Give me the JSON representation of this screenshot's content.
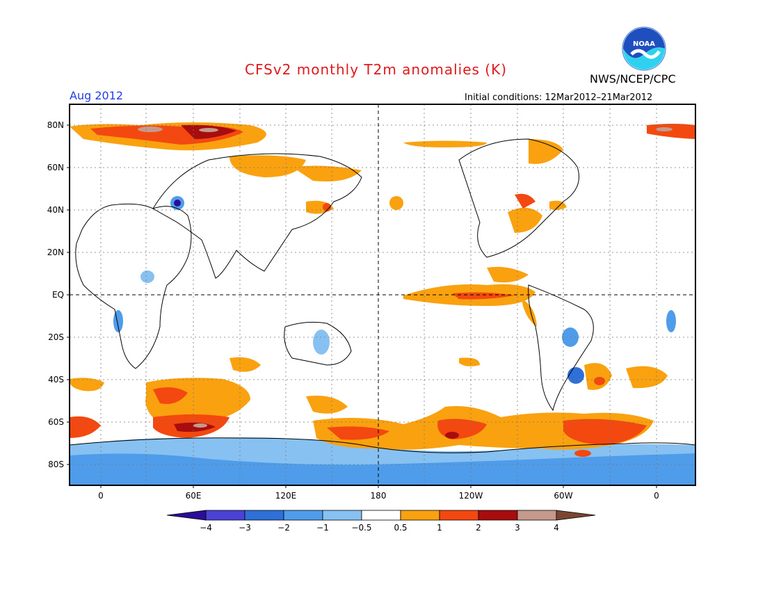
{
  "title": "CFSv2 monthly T2m anomalies (K)",
  "org": "NWS/NCEP/CPC",
  "logo_text": "NOAA",
  "valid_month": "Aug 2012",
  "initial_conditions": "Initial conditions: 12Mar2012–21Mar2012",
  "lat_labels": [
    "80N",
    "60N",
    "40N",
    "20N",
    "EQ",
    "20S",
    "40S",
    "60S",
    "80S"
  ],
  "lon_labels": [
    "0",
    "60E",
    "120E",
    "180",
    "120W",
    "60W",
    "0"
  ],
  "colorbar": {
    "ticks": [
      "−4",
      "−3",
      "−2",
      "−1",
      "−0.5",
      "0.5",
      "1",
      "2",
      "3",
      "4"
    ],
    "colors": [
      "#2c0d96",
      "#4a42d6",
      "#2f6fd8",
      "#4f9ceb",
      "#87c1f2",
      "#ffffff",
      "#f9a10e",
      "#f3480f",
      "#a80d0d",
      "#c59a8c",
      "#7a4632"
    ]
  }
}
